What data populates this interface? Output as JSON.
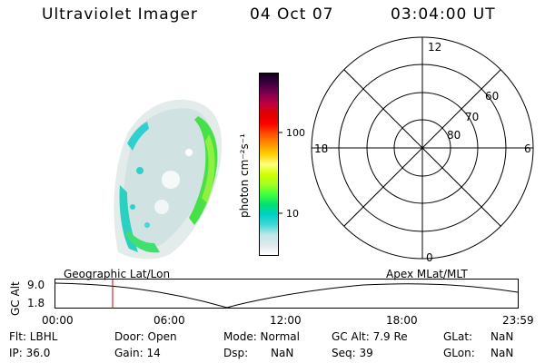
{
  "header": {
    "instrument": "Ultraviolet Imager",
    "date": "04 Oct 07",
    "time": "03:04:00 UT"
  },
  "colorbar": {
    "unit_label": "photon cm⁻²s⁻¹",
    "tick_100": "100",
    "tick_10": "10",
    "colors": [
      "#ffffff",
      "#e0e8ec",
      "#bfe8e8",
      "#40d8d8",
      "#00d0c8",
      "#00e070",
      "#40ff40",
      "#a0ff20",
      "#d0ff00",
      "#ffff80",
      "#ffd000",
      "#ff9000",
      "#ff5000",
      "#ff0000",
      "#e00000",
      "#c00040",
      "#800050",
      "#400040",
      "#100020"
    ]
  },
  "polar": {
    "label_12": "12",
    "label_18": "18",
    "label_6": "6",
    "label_0": "0",
    "label_60": "60",
    "label_70": "70",
    "label_80": "80"
  },
  "timeline": {
    "left_title": "Geographic Lat/Lon",
    "right_title": "Apex MLat/MLT",
    "ylabel": "GC Alt",
    "ytick_top": "9.0",
    "ytick_bottom": "1.8",
    "xticks": [
      "00:00",
      "06:00",
      "12:00",
      "18:00",
      "23:59"
    ],
    "marker_color": "#cc0000"
  },
  "info": {
    "flt": "Flt: LBHL",
    "door": "Door: Open",
    "mode": "Mode: Normal",
    "gcalt": "GC Alt: 7.9 Re",
    "glat_label": "GLat:",
    "glat_value": "NaN",
    "ip": "IP: 36.0",
    "gain": "Gain: 14",
    "dsp_label": "Dsp:",
    "dsp_value": "NaN",
    "seq": "Seq: 39",
    "glon_label": "GLon:",
    "glon_value": "NaN"
  }
}
